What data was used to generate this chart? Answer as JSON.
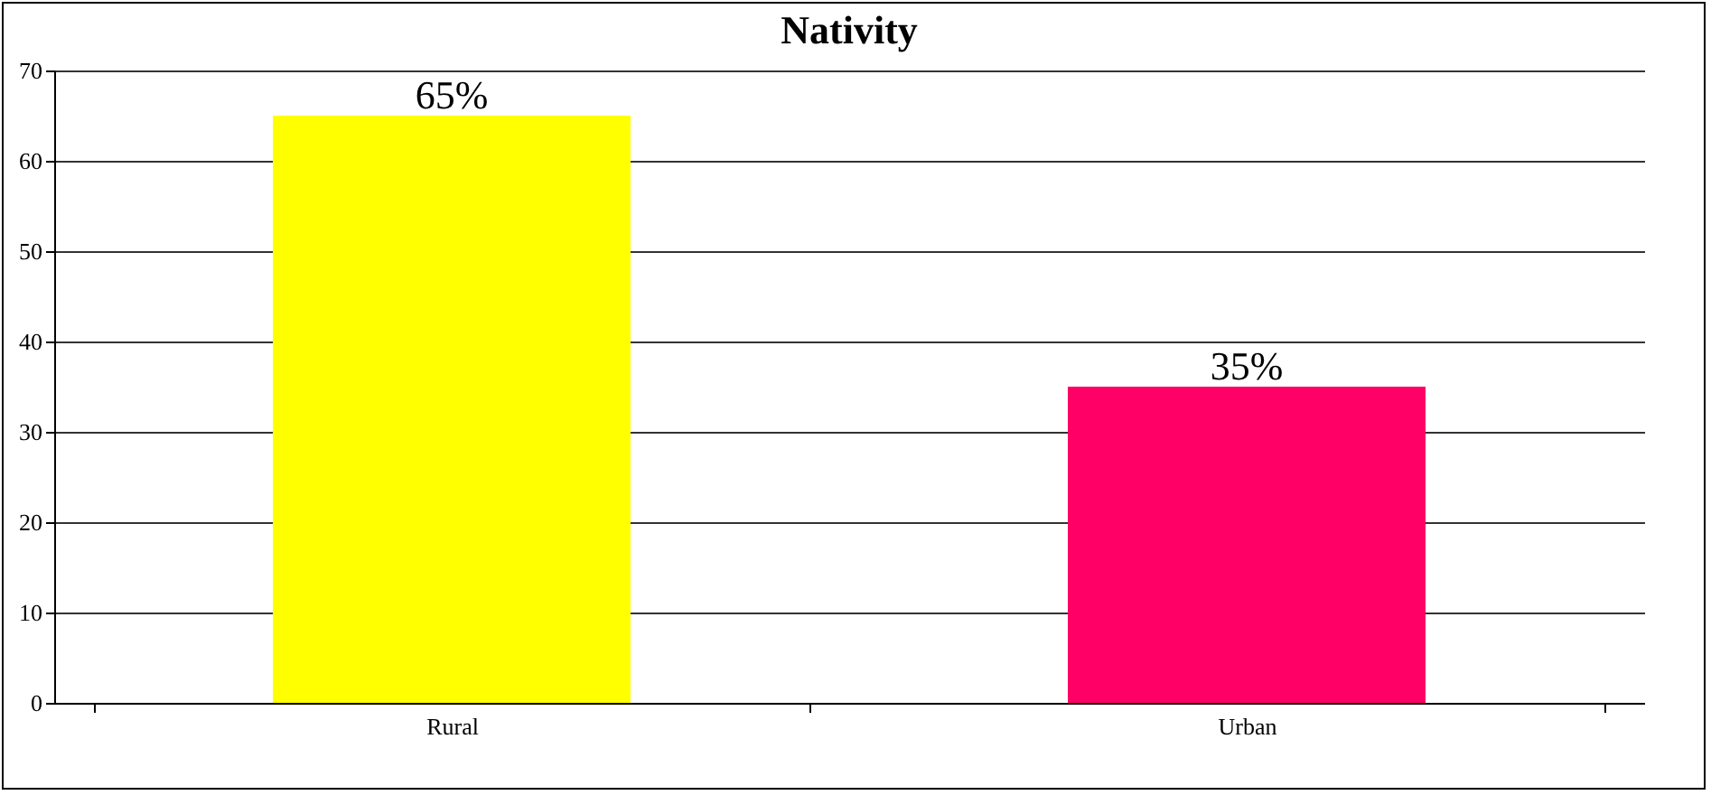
{
  "chart_data": {
    "type": "bar",
    "title": "Nativity",
    "categories": [
      "Rural",
      "Urban"
    ],
    "values": [
      65,
      35
    ],
    "colors": [
      "#ffff00",
      "#ff0066"
    ],
    "value_labels": [
      "65%",
      "35%"
    ],
    "ylim": [
      0,
      70
    ],
    "yticks": [
      0,
      10,
      20,
      30,
      40,
      50,
      60,
      70
    ],
    "grid": "y"
  }
}
